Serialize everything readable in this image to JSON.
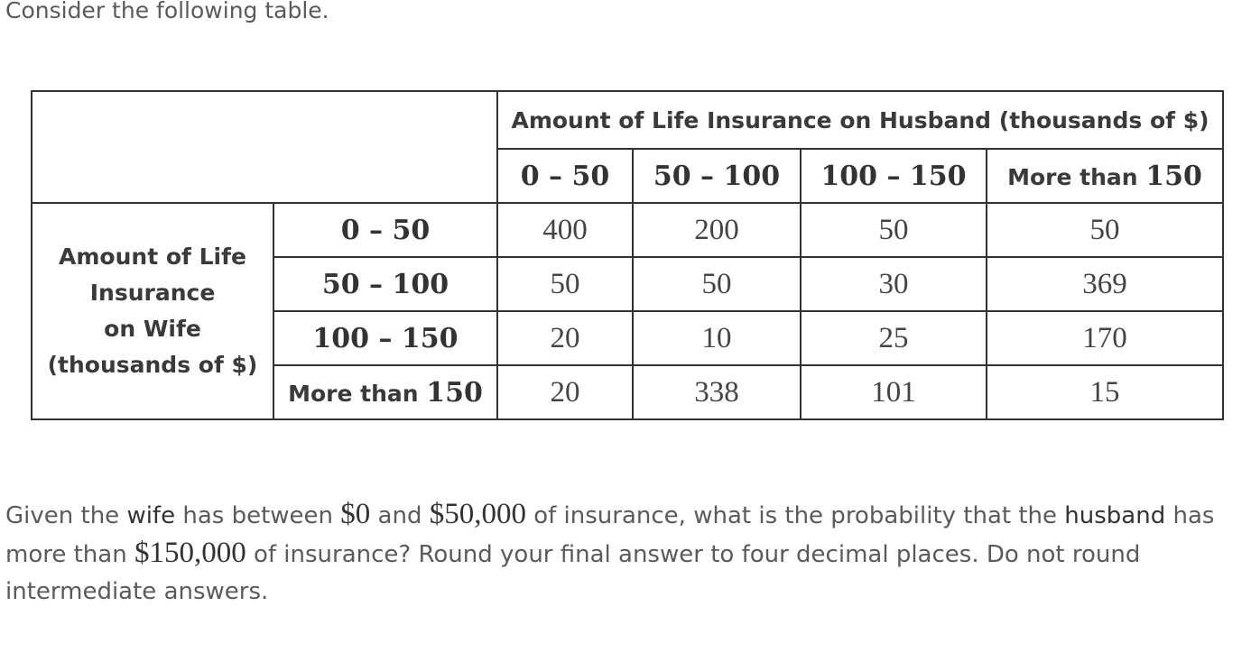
{
  "intro_text": "Consider the following table.",
  "table": {
    "husband_header": "Amount of Life Insurance on Husband (thousands of $)",
    "husband_ranges": {
      "r1": "0 – 50",
      "r2": "50 – 100",
      "r3": "100 – 150",
      "r4_text": "More than ",
      "r4_num": "150"
    },
    "wife_header": {
      "line1": "Amount of Life",
      "line2": "Insurance",
      "line3": "on Wife",
      "line4": "(thousands of $)"
    },
    "wife_ranges": {
      "r1": "0 – 50",
      "r2": "50 – 100",
      "r3": "100 – 150",
      "r4_text": "More than ",
      "r4_num": "150"
    },
    "rows": [
      [
        "400",
        "200",
        "50",
        "50"
      ],
      [
        "50",
        "50",
        "30",
        "369"
      ],
      [
        "20",
        "10",
        "25",
        "170"
      ],
      [
        "20",
        "338",
        "101",
        "15"
      ]
    ]
  },
  "question": {
    "p1": "Given the ",
    "wife": "wife",
    "p2": " has between ",
    "m1": "$0",
    "p3": " and ",
    "m2": "$50,000",
    "p4": " of insurance, what is the probability that the ",
    "husband": "husband",
    "p5": " has more than ",
    "m3": "$150,000",
    "p6": " of insurance? Round your final answer to four decimal places. Do not round intermediate answers."
  }
}
